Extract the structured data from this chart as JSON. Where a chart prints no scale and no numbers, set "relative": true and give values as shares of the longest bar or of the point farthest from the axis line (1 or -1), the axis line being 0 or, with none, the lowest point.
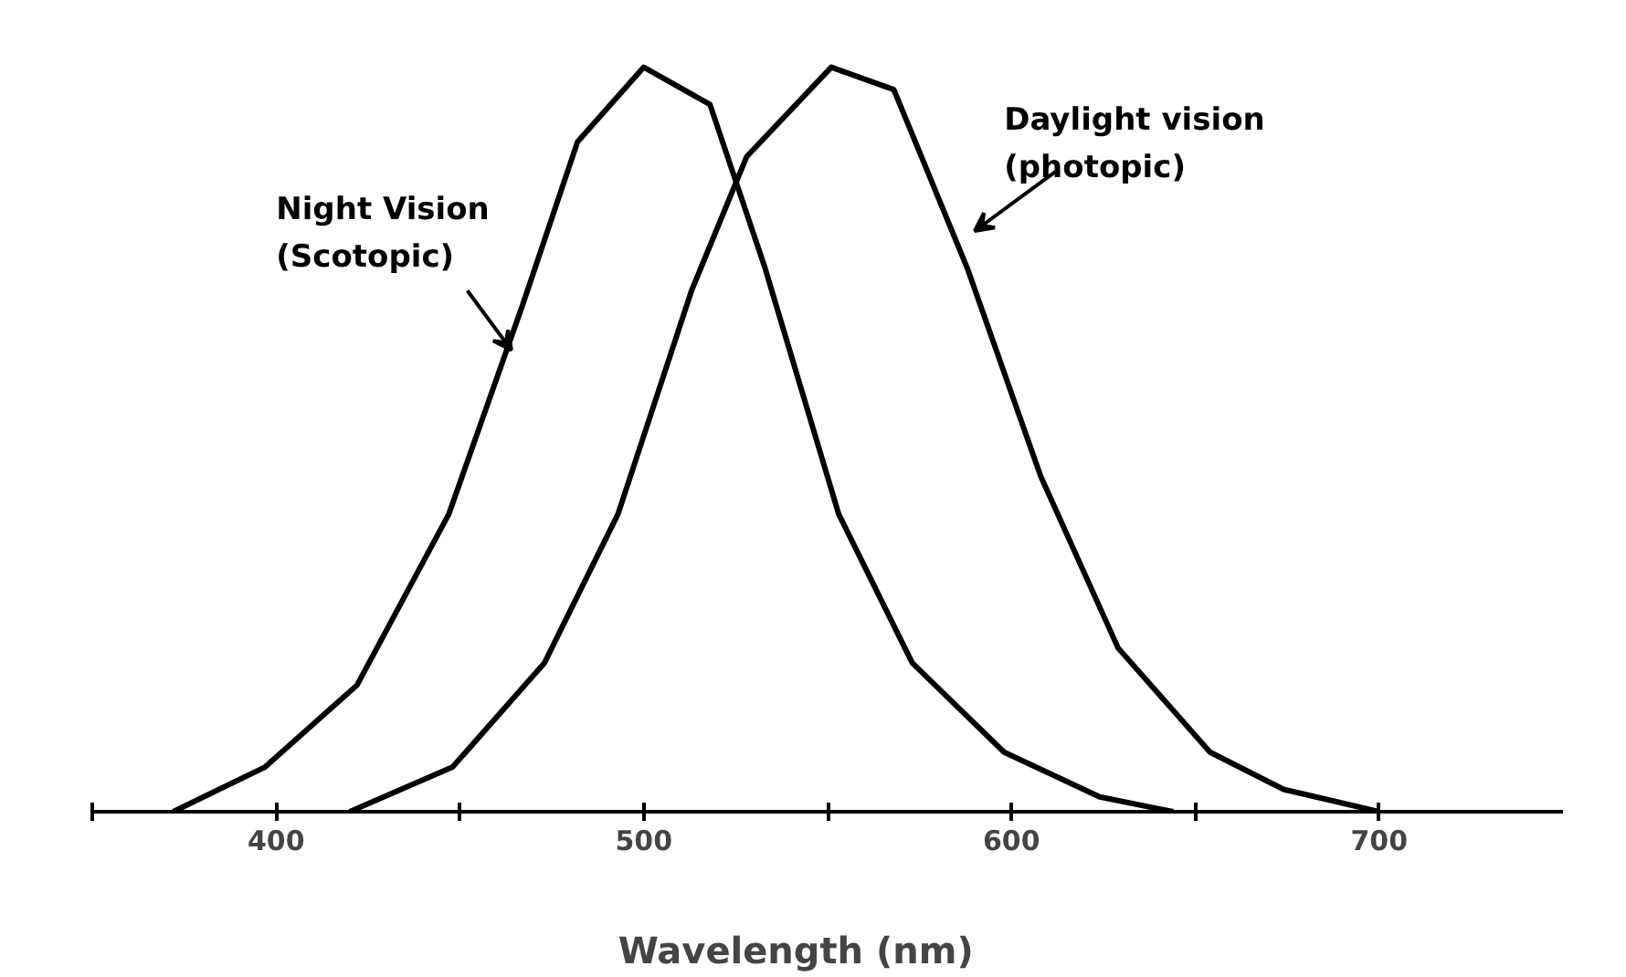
{
  "chart_data": {
    "type": "line",
    "relative": true,
    "xlabel": "Wavelength      (nm)",
    "xlim": [
      350,
      750
    ],
    "xticks": [
      {
        "value": 350,
        "label": null
      },
      400,
      {
        "value": 450,
        "label": null
      },
      500,
      {
        "value": 550,
        "label": null
      },
      600,
      {
        "value": 650,
        "label": null
      },
      700
    ],
    "grid": false,
    "series": [
      {
        "name": "Night Vision\n(Scotopic)",
        "color": "#000000",
        "x": [
          372,
          397,
          422,
          447,
          467,
          482,
          500,
          518,
          533,
          553,
          573,
          598,
          624,
          644
        ],
        "values": [
          0,
          0.06,
          0.17,
          0.4,
          0.68,
          0.9,
          1,
          0.95,
          0.73,
          0.4,
          0.2,
          0.08,
          0.02,
          0
        ]
      },
      {
        "name": "Daylight vision\n(photopic)",
        "color": "#000000",
        "x": [
          420,
          448,
          473,
          493,
          513,
          528,
          551,
          568,
          588,
          608,
          629,
          654,
          674,
          700
        ],
        "values": [
          0,
          0.06,
          0.2,
          0.4,
          0.7,
          0.88,
          1,
          0.97,
          0.73,
          0.45,
          0.22,
          0.08,
          0.03,
          0
        ]
      }
    ]
  }
}
